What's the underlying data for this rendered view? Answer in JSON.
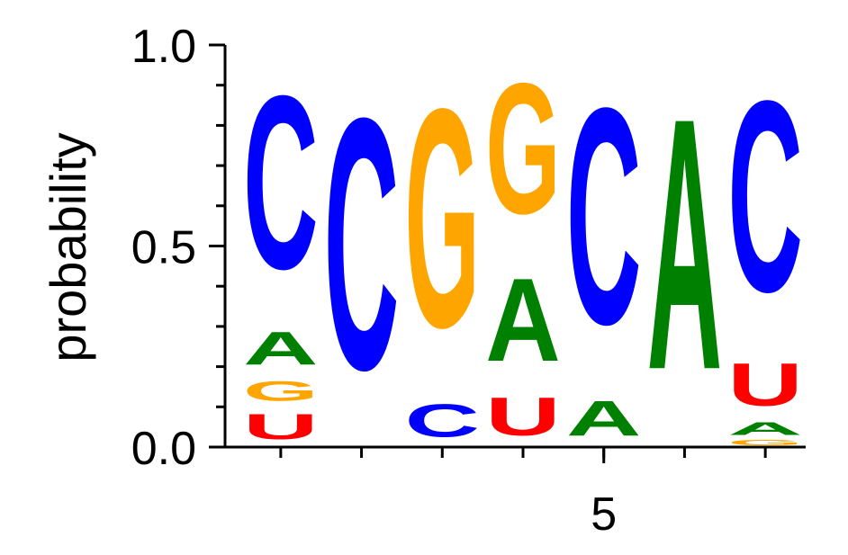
{
  "chart_data": {
    "type": "logo",
    "ylabel": "probability",
    "x": [
      1,
      2,
      3,
      4,
      5,
      6,
      7
    ],
    "xticks": [
      5
    ],
    "xlim": [
      0.5,
      7.5
    ],
    "ylim": [
      0,
      1
    ],
    "yticks": [
      {
        "value": 0,
        "label": "0.0"
      },
      {
        "value": 0.5,
        "label": "0.5"
      },
      {
        "value": 1,
        "label": "1.0"
      }
    ],
    "minor_yticks": [
      0.1,
      0.2,
      0.3,
      0.4,
      0.6,
      0.7,
      0.8,
      0.9
    ],
    "letter_colors": {
      "A": "#008000",
      "C": "#0000ff",
      "G": "#ffa500",
      "U": "#ff0000"
    },
    "stacks": [
      [
        {
          "letter": "U",
          "value": 0.1
        },
        {
          "letter": "G",
          "value": 0.08
        },
        {
          "letter": "A",
          "value": 0.13
        },
        {
          "letter": "C",
          "value": 0.69
        }
      ],
      [
        {
          "letter": "C",
          "value": 1.0
        }
      ],
      [
        {
          "letter": "C",
          "value": 0.13
        },
        {
          "letter": "G",
          "value": 0.87
        }
      ],
      [
        {
          "letter": "U",
          "value": 0.15
        },
        {
          "letter": "A",
          "value": 0.33
        },
        {
          "letter": "G",
          "value": 0.52
        }
      ],
      [
        {
          "letter": "A",
          "value": 0.14
        },
        {
          "letter": "C",
          "value": 0.86
        }
      ],
      [
        {
          "letter": "A",
          "value": 1.0
        }
      ],
      [
        {
          "letter": "G",
          "value": 0.02
        },
        {
          "letter": "A",
          "value": 0.05
        },
        {
          "letter": "U",
          "value": 0.17
        },
        {
          "letter": "C",
          "value": 0.76
        }
      ]
    ]
  }
}
